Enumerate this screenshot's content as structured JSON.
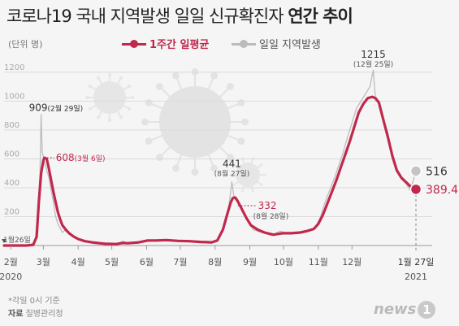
{
  "title": {
    "main": "코로나19 국내 지역발생 일일 신규확진자",
    "bold": "연간 추이"
  },
  "unit": "(단위 명)",
  "legend": {
    "avg": "1주간 일평균",
    "daily": "일일 지역발생"
  },
  "colors": {
    "avg": "#c0284c",
    "daily": "#bdbdbd",
    "grid": "#dadada"
  },
  "chart_data": {
    "type": "line",
    "y_ticks": [
      200,
      400,
      600,
      800,
      1000,
      1200
    ],
    "ylim": [
      0,
      1250
    ],
    "x_start_label": "1월26일",
    "x_year_start": "2020",
    "x_year_end": "2021",
    "months": [
      {
        "label": "2월",
        "day": 6
      },
      {
        "label": "3월",
        "day": 35
      },
      {
        "label": "4월",
        "day": 66
      },
      {
        "label": "5월",
        "day": 96
      },
      {
        "label": "6월",
        "day": 127
      },
      {
        "label": "7월",
        "day": 157
      },
      {
        "label": "8월",
        "day": 188
      },
      {
        "label": "9월",
        "day": 219
      },
      {
        "label": "10월",
        "day": 249
      },
      {
        "label": "11월",
        "day": 280
      },
      {
        "label": "12월",
        "day": 310
      }
    ],
    "end_day": 367,
    "end_label": "1월 27일",
    "series": [
      {
        "name": "일일 지역발생",
        "points": [
          [
            0,
            0
          ],
          [
            20,
            0
          ],
          [
            24,
            2
          ],
          [
            26,
            10
          ],
          [
            28,
            50
          ],
          [
            30,
            220
          ],
          [
            32,
            500
          ],
          [
            33,
            909
          ],
          [
            34,
            650
          ],
          [
            36,
            580
          ],
          [
            38,
            520
          ],
          [
            40,
            470
          ],
          [
            42,
            380
          ],
          [
            44,
            300
          ],
          [
            46,
            200
          ],
          [
            48,
            150
          ],
          [
            50,
            120
          ],
          [
            52,
            90
          ],
          [
            55,
            110
          ],
          [
            58,
            80
          ],
          [
            62,
            60
          ],
          [
            66,
            45
          ],
          [
            72,
            30
          ],
          [
            80,
            20
          ],
          [
            90,
            12
          ],
          [
            100,
            8
          ],
          [
            106,
            30
          ],
          [
            110,
            15
          ],
          [
            120,
            25
          ],
          [
            128,
            40
          ],
          [
            135,
            35
          ],
          [
            145,
            40
          ],
          [
            155,
            30
          ],
          [
            165,
            35
          ],
          [
            175,
            25
          ],
          [
            185,
            20
          ],
          [
            190,
            40
          ],
          [
            196,
            120
          ],
          [
            200,
            250
          ],
          [
            203,
            441
          ],
          [
            205,
            330
          ],
          [
            208,
            300
          ],
          [
            212,
            260
          ],
          [
            216,
            180
          ],
          [
            222,
            110
          ],
          [
            230,
            90
          ],
          [
            238,
            70
          ],
          [
            246,
            100
          ],
          [
            254,
            80
          ],
          [
            262,
            90
          ],
          [
            270,
            100
          ],
          [
            277,
            120
          ],
          [
            282,
            200
          ],
          [
            286,
            300
          ],
          [
            290,
            380
          ],
          [
            294,
            460
          ],
          [
            298,
            550
          ],
          [
            302,
            640
          ],
          [
            306,
            750
          ],
          [
            310,
            850
          ],
          [
            314,
            950
          ],
          [
            318,
            1000
          ],
          [
            322,
            1050
          ],
          [
            326,
            1100
          ],
          [
            329,
            1215
          ],
          [
            331,
            1000
          ],
          [
            334,
            1000
          ],
          [
            338,
            870
          ],
          [
            342,
            780
          ],
          [
            346,
            600
          ],
          [
            350,
            520
          ],
          [
            354,
            460
          ],
          [
            358,
            430
          ],
          [
            362,
            380
          ],
          [
            367,
            516
          ]
        ]
      },
      {
        "name": "1주간 일평균",
        "points": [
          [
            0,
            0
          ],
          [
            20,
            0
          ],
          [
            26,
            5
          ],
          [
            29,
            60
          ],
          [
            31,
            300
          ],
          [
            33,
            500
          ],
          [
            35,
            590
          ],
          [
            36,
            608
          ],
          [
            38,
            600
          ],
          [
            40,
            530
          ],
          [
            42,
            450
          ],
          [
            44,
            370
          ],
          [
            46,
            300
          ],
          [
            48,
            230
          ],
          [
            50,
            180
          ],
          [
            52,
            140
          ],
          [
            55,
            110
          ],
          [
            58,
            85
          ],
          [
            62,
            62
          ],
          [
            66,
            45
          ],
          [
            72,
            30
          ],
          [
            80,
            20
          ],
          [
            90,
            12
          ],
          [
            100,
            10
          ],
          [
            106,
            18
          ],
          [
            110,
            16
          ],
          [
            120,
            22
          ],
          [
            128,
            35
          ],
          [
            135,
            35
          ],
          [
            145,
            38
          ],
          [
            155,
            32
          ],
          [
            165,
            30
          ],
          [
            175,
            25
          ],
          [
            185,
            22
          ],
          [
            190,
            35
          ],
          [
            195,
            110
          ],
          [
            199,
            220
          ],
          [
            202,
            300
          ],
          [
            204,
            330
          ],
          [
            206,
            332
          ],
          [
            208,
            310
          ],
          [
            212,
            250
          ],
          [
            216,
            190
          ],
          [
            220,
            140
          ],
          [
            226,
            110
          ],
          [
            232,
            90
          ],
          [
            240,
            75
          ],
          [
            248,
            85
          ],
          [
            256,
            85
          ],
          [
            264,
            90
          ],
          [
            270,
            100
          ],
          [
            276,
            115
          ],
          [
            280,
            150
          ],
          [
            284,
            210
          ],
          [
            288,
            290
          ],
          [
            292,
            370
          ],
          [
            296,
            450
          ],
          [
            300,
            540
          ],
          [
            304,
            630
          ],
          [
            308,
            720
          ],
          [
            312,
            820
          ],
          [
            316,
            920
          ],
          [
            320,
            980
          ],
          [
            324,
            1020
          ],
          [
            328,
            1030
          ],
          [
            331,
            1020
          ],
          [
            334,
            990
          ],
          [
            338,
            870
          ],
          [
            342,
            750
          ],
          [
            346,
            620
          ],
          [
            350,
            520
          ],
          [
            354,
            470
          ],
          [
            358,
            440
          ],
          [
            362,
            410
          ],
          [
            367,
            389.4
          ]
        ]
      }
    ],
    "annotations": {
      "peak1_daily": {
        "day": 33,
        "value": 909,
        "date": "(2월 29일)"
      },
      "peak1_avg": {
        "day": 36,
        "value": 608,
        "date": "(3월 6일)"
      },
      "peak2_daily": {
        "day": 203,
        "value": 441,
        "date": "(8월 27일)"
      },
      "peak2_avg": {
        "day": 206,
        "value": 332,
        "date": "(8월 28일)"
      },
      "peak3_daily": {
        "day": 329,
        "value": 1215,
        "date": "(12월 25일)"
      },
      "end_daily": {
        "day": 367,
        "value": 516
      },
      "end_avg": {
        "day": 367,
        "value": 389.4
      }
    }
  },
  "footer": {
    "note": "*각일 0시 기준",
    "source_label": "자료",
    "source": "질병관리청"
  },
  "logo": {
    "text": "news",
    "mark": "1"
  }
}
